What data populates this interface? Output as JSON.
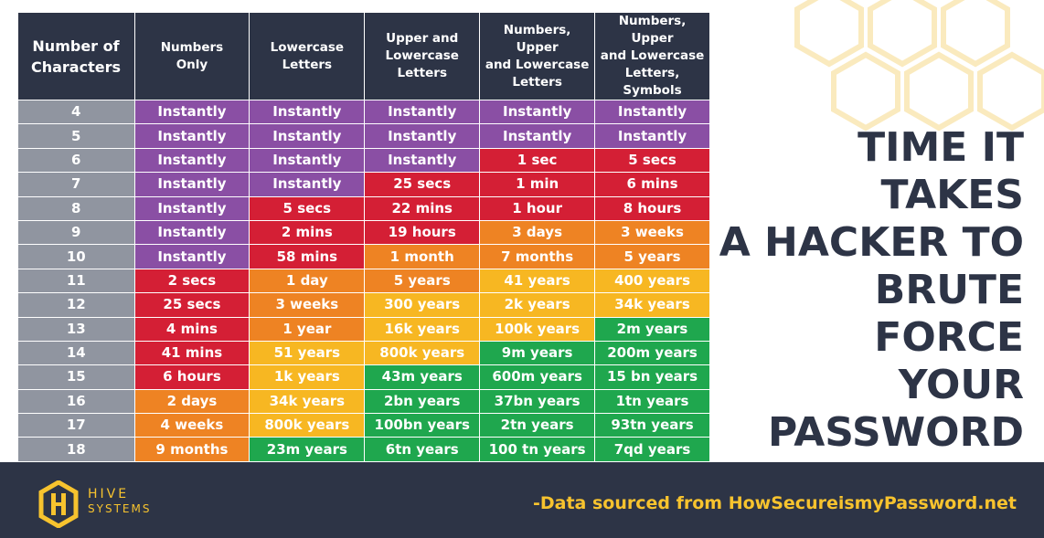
{
  "headline": [
    "TIME IT TAKES",
    "A HACKER TO",
    "BRUTE FORCE",
    "YOUR",
    "PASSWORD"
  ],
  "footer": {
    "brand": "HIVE",
    "brand_sub": "SYSTEMS",
    "source": "-Data sourced from HowSecureismyPassword.net"
  },
  "colors": {
    "purple": "#8a4fa4",
    "red": "#d41f35",
    "orange": "#ee8323",
    "yellow": "#f7b722",
    "green": "#1fa74e",
    "navy": "#2d3446"
  },
  "chart_data": {
    "type": "table",
    "columns": [
      "Number of Characters",
      "Numbers Only",
      "Lowercase Letters",
      "Upper and Lowercase Letters",
      "Numbers, Upper and Lowercase Letters",
      "Numbers, Upper and Lowercase Letters, Symbols"
    ],
    "column_lines": [
      [
        "Number of",
        "Characters"
      ],
      [
        "Numbers",
        "Only"
      ],
      [
        "Lowercase",
        "Letters"
      ],
      [
        "Upper and",
        "Lowercase Letters"
      ],
      [
        "Numbers, Upper",
        "and Lowercase",
        "Letters"
      ],
      [
        "Numbers, Upper",
        "and Lowercase",
        "Letters, Symbols"
      ]
    ],
    "rows": [
      {
        "chars": "4",
        "values": [
          "Instantly",
          "Instantly",
          "Instantly",
          "Instantly",
          "Instantly"
        ],
        "colors": [
          "purple",
          "purple",
          "purple",
          "purple",
          "purple"
        ]
      },
      {
        "chars": "5",
        "values": [
          "Instantly",
          "Instantly",
          "Instantly",
          "Instantly",
          "Instantly"
        ],
        "colors": [
          "purple",
          "purple",
          "purple",
          "purple",
          "purple"
        ]
      },
      {
        "chars": "6",
        "values": [
          "Instantly",
          "Instantly",
          "Instantly",
          "1 sec",
          "5 secs"
        ],
        "colors": [
          "purple",
          "purple",
          "purple",
          "red",
          "red"
        ]
      },
      {
        "chars": "7",
        "values": [
          "Instantly",
          "Instantly",
          "25 secs",
          "1 min",
          "6 mins"
        ],
        "colors": [
          "purple",
          "purple",
          "red",
          "red",
          "red"
        ]
      },
      {
        "chars": "8",
        "values": [
          "Instantly",
          "5 secs",
          "22 mins",
          "1 hour",
          "8 hours"
        ],
        "colors": [
          "purple",
          "red",
          "red",
          "red",
          "red"
        ]
      },
      {
        "chars": "9",
        "values": [
          "Instantly",
          "2 mins",
          "19 hours",
          "3 days",
          "3 weeks"
        ],
        "colors": [
          "purple",
          "red",
          "red",
          "orange",
          "orange"
        ]
      },
      {
        "chars": "10",
        "values": [
          "Instantly",
          "58 mins",
          "1 month",
          "7 months",
          "5 years"
        ],
        "colors": [
          "purple",
          "red",
          "orange",
          "orange",
          "orange"
        ]
      },
      {
        "chars": "11",
        "values": [
          "2 secs",
          "1 day",
          "5 years",
          "41 years",
          "400 years"
        ],
        "colors": [
          "red",
          "orange",
          "orange",
          "yellow",
          "yellow"
        ]
      },
      {
        "chars": "12",
        "values": [
          "25 secs",
          "3 weeks",
          "300 years",
          "2k years",
          "34k years"
        ],
        "colors": [
          "red",
          "orange",
          "yellow",
          "yellow",
          "yellow"
        ]
      },
      {
        "chars": "13",
        "values": [
          "4 mins",
          "1 year",
          "16k years",
          "100k years",
          "2m years"
        ],
        "colors": [
          "red",
          "orange",
          "yellow",
          "yellow",
          "green"
        ]
      },
      {
        "chars": "14",
        "values": [
          "41 mins",
          "51 years",
          "800k years",
          "9m years",
          "200m years"
        ],
        "colors": [
          "red",
          "yellow",
          "yellow",
          "green",
          "green"
        ]
      },
      {
        "chars": "15",
        "values": [
          "6 hours",
          "1k years",
          "43m years",
          "600m years",
          "15 bn years"
        ],
        "colors": [
          "red",
          "yellow",
          "green",
          "green",
          "green"
        ]
      },
      {
        "chars": "16",
        "values": [
          "2 days",
          "34k years",
          "2bn years",
          "37bn years",
          "1tn years"
        ],
        "colors": [
          "orange",
          "yellow",
          "green",
          "green",
          "green"
        ]
      },
      {
        "chars": "17",
        "values": [
          "4 weeks",
          "800k years",
          "100bn years",
          "2tn years",
          "93tn years"
        ],
        "colors": [
          "orange",
          "yellow",
          "green",
          "green",
          "green"
        ]
      },
      {
        "chars": "18",
        "values": [
          "9 months",
          "23m years",
          "6tn years",
          "100 tn years",
          "7qd years"
        ],
        "colors": [
          "orange",
          "green",
          "green",
          "green",
          "green"
        ]
      }
    ]
  }
}
